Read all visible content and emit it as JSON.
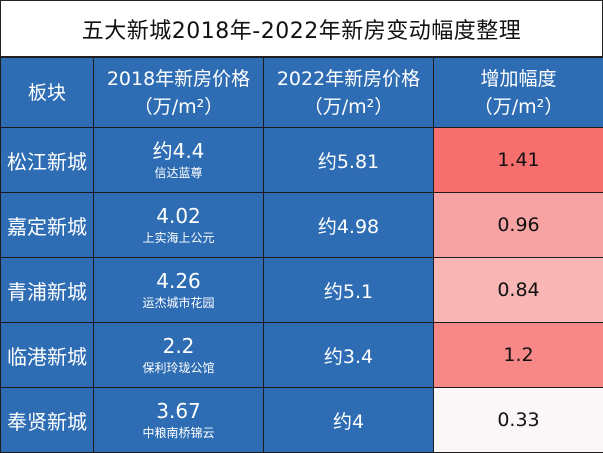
{
  "title": "五大新城2018年-2022年新房变动幅度整理",
  "headers": {
    "col1": "板块",
    "col2_line1": "2018年新房价格",
    "col2_line2": "（万/m²）",
    "col3_line1": "2022年新房价格",
    "col3_line2": "（万/m²）",
    "col4_line1": "增加幅度",
    "col4_line2": "（万/m²）"
  },
  "rows": [
    {
      "name": "松江新城",
      "price2018": "约4.4",
      "project": "信达蓝尊",
      "price2022": "约5.81",
      "increase": "1.41",
      "color": "#f66e6e"
    },
    {
      "name": "嘉定新城",
      "price2018": "4.02",
      "project": "上实海上公元",
      "price2022": "约4.98",
      "increase": "0.96",
      "color": "#f8a3a3"
    },
    {
      "name": "青浦新城",
      "price2018": "4.26",
      "project": "运杰城市花园",
      "price2022": "约5.1",
      "increase": "0.84",
      "color": "#fab5b5"
    },
    {
      "name": "临港新城",
      "price2018": "2.2",
      "project": "保利玲珑公馆",
      "price2022": "约3.4",
      "increase": "1.2",
      "color": "#f78888"
    },
    {
      "name": "奉贤新城",
      "price2018": "3.67",
      "project": "中粮南桥锦云",
      "price2022": "约4",
      "increase": "0.33",
      "color": "#fbf7f9"
    }
  ]
}
